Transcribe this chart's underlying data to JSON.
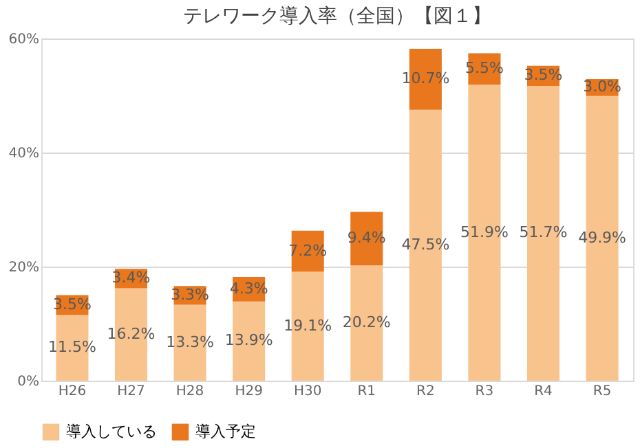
{
  "chart_data": {
    "type": "bar",
    "stacked": true,
    "title": "テレワーク導入率（全国）【図１】",
    "categories": [
      "H26",
      "H27",
      "H28",
      "H29",
      "H30",
      "R1",
      "R2",
      "R3",
      "R4",
      "R5"
    ],
    "series": [
      {
        "name": "導入している",
        "color": "#f9c38e",
        "values": [
          11.5,
          16.2,
          13.3,
          13.9,
          19.1,
          20.2,
          47.5,
          51.9,
          51.7,
          49.9
        ],
        "value_labels": [
          "11.5%",
          "16.2%",
          "13.3%",
          "13.9%",
          "19.1%",
          "20.2%",
          "47.5%",
          "51.9%",
          "51.7%",
          "49.9%"
        ]
      },
      {
        "name": "導入予定",
        "color": "#e8771e",
        "values": [
          3.5,
          3.4,
          3.3,
          4.3,
          7.2,
          9.4,
          10.7,
          5.5,
          3.5,
          3.0
        ],
        "value_labels": [
          "3.5%",
          "3.4%",
          "3.3%",
          "4.3%",
          "7.2%",
          "9.4%",
          "10.7%",
          "5.5%",
          "3.5%",
          "3.0%"
        ]
      }
    ],
    "ylim": [
      0,
      60
    ],
    "yticks": [
      {
        "value": 0,
        "label": "0%"
      },
      {
        "value": 20,
        "label": "20%"
      },
      {
        "value": 40,
        "label": "40%"
      },
      {
        "value": 60,
        "label": "60%"
      }
    ],
    "grid": "y",
    "legend": "bottom"
  }
}
